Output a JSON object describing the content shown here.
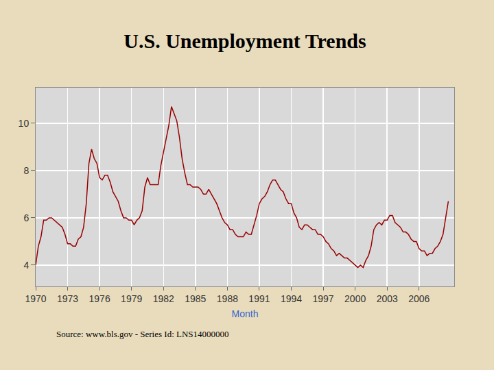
{
  "chart_data": {
    "type": "line",
    "title": "U.S. Unemployment Trends",
    "x_label": "Month",
    "annotations": [
      "Source: www.bls.gov - Series Id: LNS14000000"
    ],
    "color": "#990000",
    "grid": true,
    "xlim": [
      1970,
      2009.3
    ],
    "ylim": [
      3.1,
      11.5
    ],
    "xticks": [
      1970,
      1973,
      1976,
      1979,
      1982,
      1985,
      1988,
      1991,
      1994,
      1997,
      2000,
      2003,
      2006
    ],
    "yticks": [
      4,
      6,
      8,
      10
    ],
    "x": [
      1970,
      1970.25,
      1970.5,
      1970.75,
      1971,
      1971.25,
      1971.5,
      1971.75,
      1972,
      1972.25,
      1972.5,
      1972.75,
      1973,
      1973.25,
      1973.5,
      1973.75,
      1974,
      1974.25,
      1974.5,
      1974.75,
      1975,
      1975.25,
      1975.5,
      1975.75,
      1976,
      1976.25,
      1976.5,
      1976.75,
      1977,
      1977.25,
      1977.5,
      1977.75,
      1978,
      1978.25,
      1978.5,
      1978.75,
      1979,
      1979.25,
      1979.5,
      1979.75,
      1980,
      1980.25,
      1980.5,
      1980.75,
      1981,
      1981.25,
      1981.5,
      1981.75,
      1982,
      1982.25,
      1982.5,
      1982.75,
      1983,
      1983.25,
      1983.5,
      1983.75,
      1984,
      1984.25,
      1984.5,
      1984.75,
      1985,
      1985.25,
      1985.5,
      1985.75,
      1986,
      1986.25,
      1986.5,
      1986.75,
      1987,
      1987.25,
      1987.5,
      1987.75,
      1988,
      1988.25,
      1988.5,
      1988.75,
      1989,
      1989.25,
      1989.5,
      1989.75,
      1990,
      1990.25,
      1990.5,
      1990.75,
      1991,
      1991.25,
      1991.5,
      1991.75,
      1992,
      1992.25,
      1992.5,
      1992.75,
      1993,
      1993.25,
      1993.5,
      1993.75,
      1994,
      1994.25,
      1994.5,
      1994.75,
      1995,
      1995.25,
      1995.5,
      1995.75,
      1996,
      1996.25,
      1996.5,
      1996.75,
      1997,
      1997.25,
      1997.5,
      1997.75,
      1998,
      1998.25,
      1998.5,
      1998.75,
      1999,
      1999.25,
      1999.5,
      1999.75,
      2000,
      2000.25,
      2000.5,
      2000.75,
      2001,
      2001.25,
      2001.5,
      2001.75,
      2002,
      2002.25,
      2002.5,
      2002.75,
      2003,
      2003.25,
      2003.5,
      2003.75,
      2004,
      2004.25,
      2004.5,
      2004.75,
      2005,
      2005.25,
      2005.5,
      2005.75,
      2006,
      2006.25,
      2006.5,
      2006.75,
      2007,
      2007.25,
      2007.5,
      2007.75,
      2008,
      2008.25,
      2008.5,
      2008.75
    ],
    "values": [
      4.0,
      4.8,
      5.2,
      5.9,
      5.9,
      6.0,
      6.0,
      5.9,
      5.8,
      5.7,
      5.6,
      5.3,
      4.9,
      4.9,
      4.8,
      4.8,
      5.1,
      5.2,
      5.6,
      6.6,
      8.3,
      8.9,
      8.5,
      8.3,
      7.7,
      7.6,
      7.8,
      7.8,
      7.5,
      7.1,
      6.9,
      6.7,
      6.3,
      6.0,
      6.0,
      5.9,
      5.9,
      5.7,
      5.9,
      6.0,
      6.3,
      7.3,
      7.7,
      7.4,
      7.4,
      7.4,
      7.4,
      8.2,
      8.8,
      9.4,
      9.9,
      10.7,
      10.4,
      10.1,
      9.4,
      8.5,
      7.9,
      7.4,
      7.4,
      7.3,
      7.3,
      7.3,
      7.2,
      7.0,
      7.0,
      7.2,
      7.0,
      6.8,
      6.6,
      6.3,
      6.0,
      5.8,
      5.7,
      5.5,
      5.5,
      5.3,
      5.2,
      5.2,
      5.2,
      5.4,
      5.3,
      5.3,
      5.7,
      6.1,
      6.6,
      6.8,
      6.9,
      7.1,
      7.4,
      7.6,
      7.6,
      7.4,
      7.2,
      7.1,
      6.8,
      6.6,
      6.6,
      6.2,
      6.0,
      5.6,
      5.5,
      5.7,
      5.7,
      5.6,
      5.5,
      5.5,
      5.3,
      5.3,
      5.2,
      5.0,
      4.9,
      4.7,
      4.6,
      4.4,
      4.5,
      4.4,
      4.3,
      4.3,
      4.2,
      4.1,
      4.0,
      3.9,
      4.0,
      3.9,
      4.2,
      4.4,
      4.8,
      5.5,
      5.7,
      5.8,
      5.7,
      5.9,
      5.9,
      6.1,
      6.1,
      5.8,
      5.7,
      5.6,
      5.4,
      5.4,
      5.3,
      5.1,
      5.0,
      5.0,
      4.7,
      4.6,
      4.6,
      4.4,
      4.5,
      4.5,
      4.7,
      4.8,
      5.0,
      5.3,
      6.0,
      6.7
    ]
  }
}
